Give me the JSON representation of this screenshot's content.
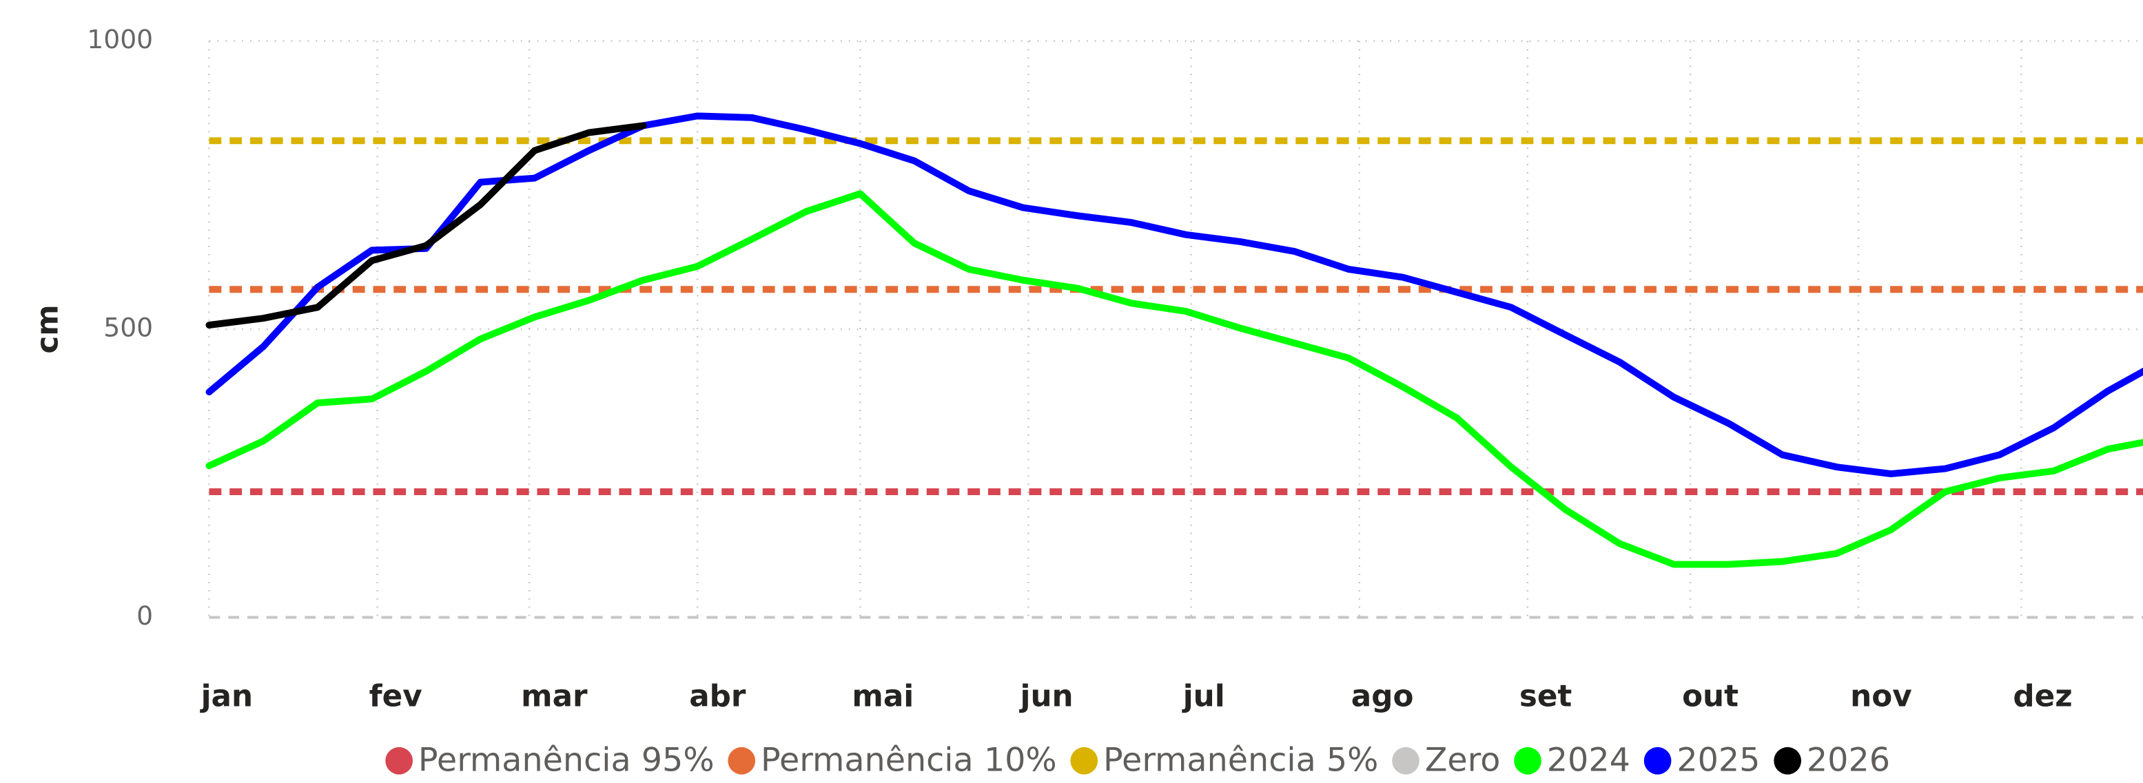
{
  "chart_data": {
    "type": "line",
    "y_label": "cm",
    "x": [
      1,
      11,
      21,
      31,
      41,
      51,
      61,
      71,
      81,
      91,
      101,
      111,
      121,
      131,
      141,
      151,
      161,
      171,
      181,
      191,
      201,
      211,
      221,
      231,
      241,
      251,
      261,
      271,
      281,
      291,
      301,
      311,
      321,
      331,
      341,
      351,
      361
    ],
    "xlim": [
      1,
      365
    ],
    "xticks": [
      {
        "value": 1,
        "label": "jan"
      },
      {
        "value": 32,
        "label": "fev"
      },
      {
        "value": 60,
        "label": "mar"
      },
      {
        "value": 91,
        "label": "abr"
      },
      {
        "value": 121,
        "label": "mai"
      },
      {
        "value": 152,
        "label": "jun"
      },
      {
        "value": 182,
        "label": "jul"
      },
      {
        "value": 213,
        "label": "ago"
      },
      {
        "value": 244,
        "label": "set"
      },
      {
        "value": 274,
        "label": "out"
      },
      {
        "value": 305,
        "label": "nov"
      },
      {
        "value": 335,
        "label": "dez"
      }
    ],
    "ylim": [
      0,
      1000
    ],
    "yticks": [
      0,
      500,
      1000
    ],
    "grid": true,
    "legend": "bottom",
    "series": [
      {
        "name": "Permanência 95%",
        "color": "#d64550",
        "value": 218,
        "dashed": true
      },
      {
        "name": "Permanência 10%",
        "color": "#e66c37",
        "value": 569,
        "dashed": true
      },
      {
        "name": "Permanência 5%",
        "color": "#d9b300",
        "value": 827,
        "dashed": true
      },
      {
        "name": "Zero",
        "color": "#c8c6c4",
        "value": 0,
        "dashed": true
      },
      {
        "name": "2024",
        "color": "#00ff00",
        "values": [
          263,
          306,
          372,
          379,
          427,
          483,
          521,
          550,
          585,
          609,
          656,
          704,
          735,
          649,
          604,
          585,
          571,
          545,
          531,
          502,
          476,
          450,
          400,
          346,
          261,
          187,
          128,
          92,
          92,
          97,
          111,
          152,
          218,
          242,
          254,
          292,
          310
        ]
      },
      {
        "name": "2025",
        "color": "#0000ff",
        "values": [
          391,
          470,
          573,
          637,
          640,
          755,
          762,
          810,
          853,
          870,
          867,
          846,
          822,
          792,
          740,
          711,
          697,
          685,
          664,
          652,
          635,
          604,
          590,
          564,
          538,
          490,
          443,
          382,
          337,
          282,
          261,
          249,
          258,
          282,
          329,
          393,
          445
        ]
      },
      {
        "name": "2026",
        "color": "#000000",
        "values": [
          507,
          519,
          538,
          619,
          645,
          716,
          810,
          841,
          853,
          null,
          null,
          null,
          null,
          null,
          null,
          null,
          null,
          null,
          null,
          null,
          null,
          null,
          null,
          null,
          null,
          null,
          null,
          null,
          null,
          null,
          null,
          null,
          null,
          null,
          null,
          null,
          null
        ]
      }
    ]
  }
}
